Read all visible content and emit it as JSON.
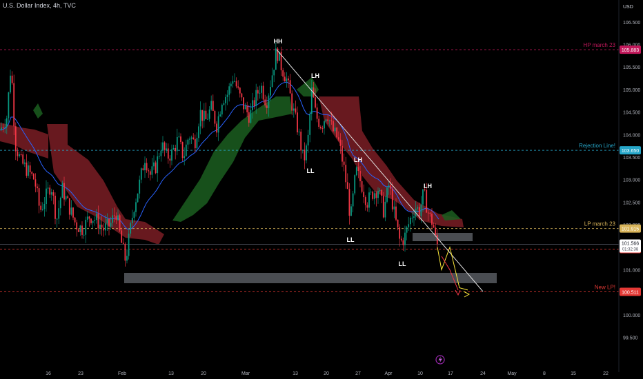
{
  "header": {
    "title": "U.S. Dollar Index, 4h, TVC"
  },
  "chart_data": {
    "type": "candlestick",
    "price_axis": {
      "label": "USD",
      "ticks": [
        "106.500",
        "106.000",
        "105.500",
        "105.000",
        "104.500",
        "104.000",
        "103.500",
        "103.000",
        "102.500",
        "102.000",
        "101.500",
        "101.000",
        "100.500",
        "100.000",
        "99.500"
      ],
      "range": [
        99.2,
        106.9
      ]
    },
    "time_axis": {
      "ticks": [
        "16",
        "23",
        "Feb",
        "13",
        "20",
        "Mar",
        "13",
        "20",
        "27",
        "Apr",
        "10",
        "17",
        "24",
        "May",
        "8",
        "15",
        "22"
      ]
    },
    "horizontal_levels": [
      {
        "name": "HP march 23",
        "value": "105.883",
        "color": "#c2185b"
      },
      {
        "name": "Rejection Line!",
        "value": "103.650",
        "color": "#26a6c9"
      },
      {
        "name": "LP march 23",
        "value": "101.915",
        "color": "#d8b45a"
      },
      {
        "name": "",
        "value": "101.459",
        "color": "#e53935"
      },
      {
        "name": "New LP!",
        "value": "100.511",
        "color": "#e53935"
      }
    ],
    "current_price": {
      "value": "101.566",
      "countdown": "01:32:38"
    },
    "structure_labels": [
      "HH",
      "LH",
      "LL",
      "LH",
      "LL",
      "LH",
      "LL"
    ],
    "close_path": [
      [
        0,
        104.1
      ],
      [
        10,
        104.4
      ],
      [
        16,
        105.6
      ],
      [
        22,
        103.8
      ],
      [
        30,
        103.4
      ],
      [
        40,
        103.2
      ],
      [
        50,
        103.0
      ],
      [
        58,
        102.3
      ],
      [
        66,
        102.6
      ],
      [
        74,
        102.9
      ],
      [
        82,
        102.1
      ],
      [
        90,
        102.8
      ],
      [
        100,
        102.4
      ],
      [
        110,
        102.0
      ],
      [
        120,
        101.9
      ],
      [
        130,
        102.2
      ],
      [
        140,
        102.1
      ],
      [
        150,
        101.9
      ],
      [
        160,
        102.0
      ],
      [
        168,
        102.3
      ],
      [
        176,
        101.6
      ],
      [
        182,
        101.2
      ],
      [
        188,
        101.8
      ],
      [
        194,
        102.4
      ],
      [
        202,
        102.9
      ],
      [
        210,
        103.5
      ],
      [
        218,
        103.1
      ],
      [
        226,
        103.3
      ],
      [
        234,
        103.8
      ],
      [
        242,
        103.5
      ],
      [
        250,
        103.6
      ],
      [
        258,
        103.9
      ],
      [
        266,
        103.5
      ],
      [
        274,
        104.0
      ],
      [
        282,
        103.8
      ],
      [
        290,
        104.5
      ],
      [
        298,
        104.3
      ],
      [
        306,
        104.6
      ],
      [
        314,
        104.2
      ],
      [
        322,
        104.8
      ],
      [
        330,
        104.9
      ],
      [
        338,
        105.3
      ],
      [
        346,
        104.9
      ],
      [
        354,
        104.6
      ],
      [
        362,
        104.4
      ],
      [
        370,
        104.8
      ],
      [
        378,
        105.1
      ],
      [
        386,
        104.7
      ],
      [
        394,
        105.3
      ],
      [
        401,
        105.88
      ],
      [
        408,
        105.5
      ],
      [
        416,
        105.2
      ],
      [
        424,
        104.6
      ],
      [
        432,
        104.1
      ],
      [
        440,
        103.4
      ],
      [
        446,
        103.8
      ],
      [
        452,
        105.0
      ],
      [
        458,
        104.4
      ],
      [
        466,
        104.2
      ],
      [
        474,
        104.5
      ],
      [
        482,
        104.1
      ],
      [
        490,
        103.9
      ],
      [
        498,
        103.3
      ],
      [
        504,
        102.7
      ],
      [
        508,
        102.1
      ],
      [
        516,
        103.2
      ],
      [
        524,
        102.9
      ],
      [
        532,
        102.5
      ],
      [
        540,
        102.7
      ],
      [
        548,
        102.8
      ],
      [
        556,
        102.3
      ],
      [
        564,
        102.9
      ],
      [
        572,
        102.2
      ],
      [
        580,
        101.6
      ],
      [
        586,
        101.7
      ],
      [
        594,
        102.1
      ],
      [
        602,
        102.4
      ],
      [
        608,
        102.3
      ],
      [
        614,
        102.7
      ],
      [
        622,
        102.2
      ],
      [
        628,
        102.0
      ],
      [
        632,
        101.6
      ],
      [
        636,
        101.5
      ]
    ],
    "forecast_paths": {
      "yellow": [
        [
          634,
          101.5
        ],
        [
          640,
          101.0
        ],
        [
          652,
          101.5
        ],
        [
          666,
          100.6
        ],
        [
          678,
          100.55
        ]
      ],
      "red": [
        [
          640,
          101.3
        ],
        [
          652,
          101.0
        ],
        [
          664,
          100.55
        ]
      ]
    }
  }
}
